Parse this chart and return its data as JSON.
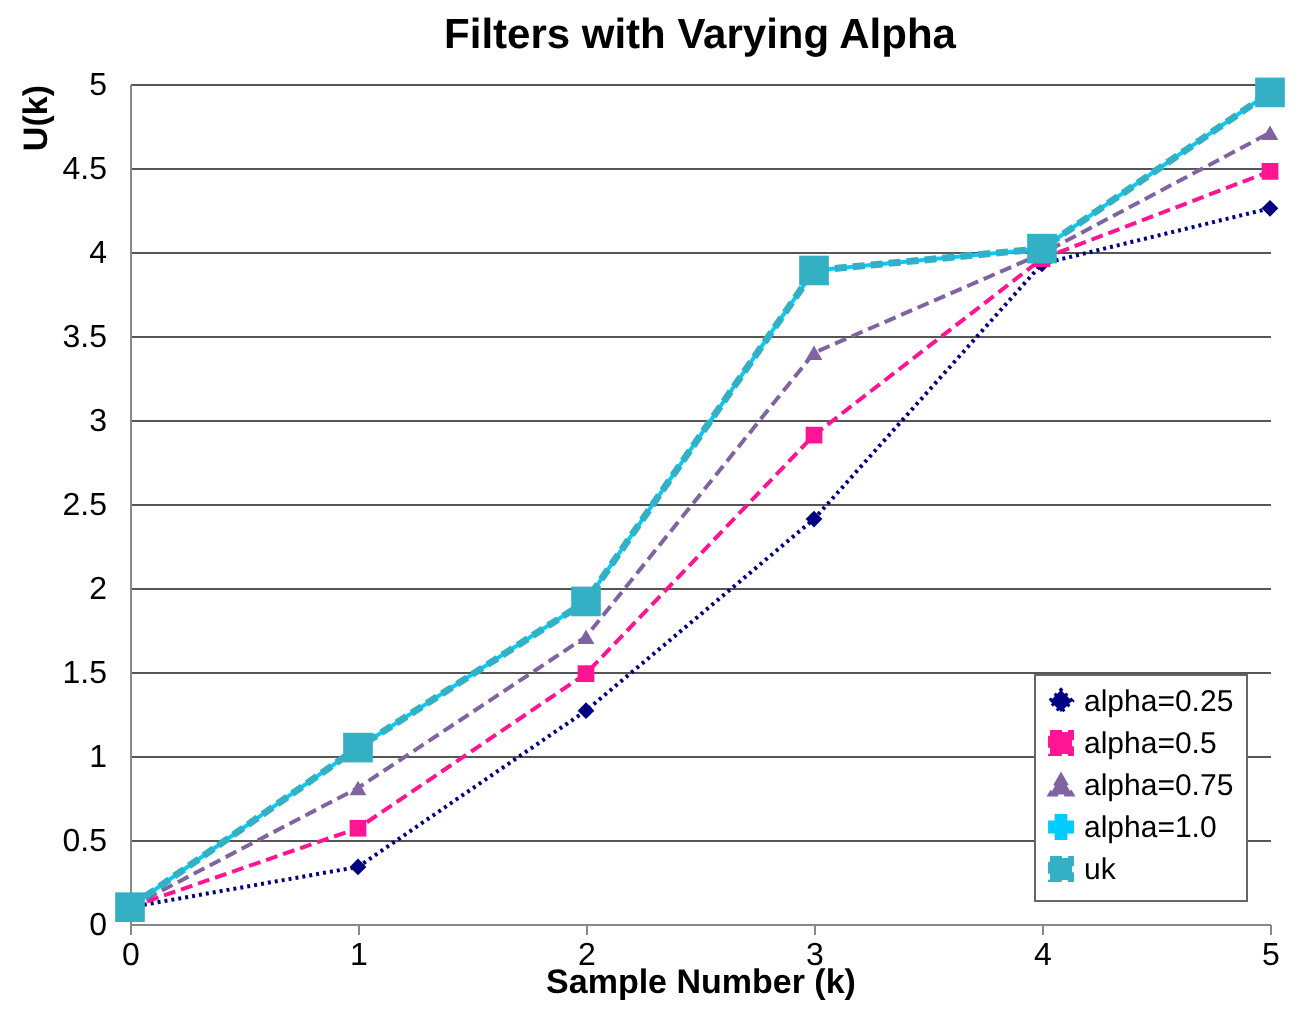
{
  "chart_data": {
    "type": "line",
    "title": "Filters with Varying Alpha",
    "xlabel": "Sample Number (k)",
    "ylabel": "U(k)",
    "x": [
      0,
      1,
      2,
      3,
      4,
      5
    ],
    "xlim": [
      0,
      5
    ],
    "xticks": [
      0,
      1,
      2,
      3,
      4,
      5
    ],
    "ylim": [
      0,
      5
    ],
    "yticks": [
      0,
      0.5,
      1,
      1.5,
      2,
      2.5,
      3,
      3.5,
      4,
      4.5,
      5
    ],
    "grid": "y",
    "legend": "bottom right",
    "series": [
      {
        "name": "alpha=0.25",
        "color": "#000080",
        "marker": "diamond",
        "line_style": "dotted",
        "values": [
          0.1,
          0.34,
          1.27,
          2.41,
          3.93,
          4.26
        ]
      },
      {
        "name": "alpha=0.5",
        "color": "#ff1493",
        "marker": "square",
        "line_style": "dashed",
        "values": [
          0.1,
          0.57,
          1.49,
          2.91,
          3.96,
          4.48
        ]
      },
      {
        "name": "alpha=0.75",
        "color": "#8064a2",
        "marker": "triangle",
        "line_style": "dashed",
        "values": [
          0.1,
          0.81,
          1.71,
          3.4,
          3.99,
          4.71
        ]
      },
      {
        "name": "alpha=1.0",
        "color": "#00ccff",
        "marker": "cross",
        "line_style": "solid",
        "values": [
          0.1,
          1.05,
          1.92,
          3.89,
          4.02,
          4.95
        ]
      },
      {
        "name": "uk",
        "color": "#33b0c4",
        "marker": "square",
        "line_style": "dashed",
        "values": [
          0.1,
          1.05,
          1.92,
          3.89,
          4.02,
          4.95
        ]
      }
    ]
  }
}
